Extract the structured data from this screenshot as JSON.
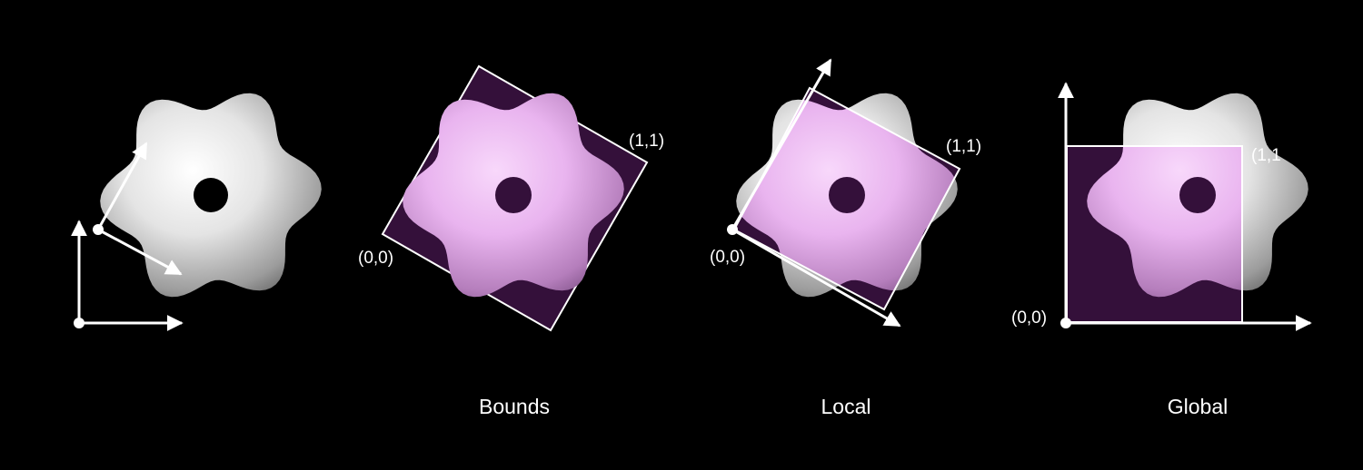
{
  "panels": [
    {
      "caption": "",
      "origin_label": "",
      "corner_label": ""
    },
    {
      "caption": "Bounds",
      "origin_label": "(0,0)",
      "corner_label": "(1,1)"
    },
    {
      "caption": "Local",
      "origin_label": "(0,0)",
      "corner_label": "(1,1)"
    },
    {
      "caption": "Global",
      "origin_label": "(0,0)",
      "corner_label": "(1,1"
    }
  ],
  "colors": {
    "background": "#000000",
    "shape": "#e6e6e6",
    "box_fill": "#34103a",
    "overlay": "#e9b4ef",
    "line": "#ffffff"
  }
}
